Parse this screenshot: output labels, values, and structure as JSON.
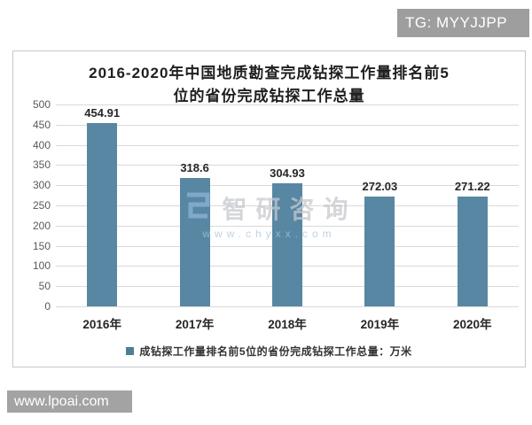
{
  "badges": {
    "telegram": {
      "label": "TG: MYYJJPP",
      "bg": "#9e9e9e"
    },
    "website": {
      "label": "www.lpoai.com",
      "bg": "#a3a3a3"
    }
  },
  "watermark": {
    "logo_icon": "zhiyan-logo-icon",
    "brand": "智研咨询",
    "url": "www.chyxx.com",
    "brand_color": "#c6c9ce",
    "url_color": "#a9c4de",
    "logo_color": "#8fb3d6"
  },
  "chart_data": {
    "type": "bar",
    "title": "2016-2020年中国地质勘查完成钻探工作量排名前5位的省份完成钻探工作总量",
    "title_lines": [
      "2016-2020年中国地质勘查完成钻探工作量排名前5",
      "位的省份完成钻探工作总量"
    ],
    "categories": [
      "2016年",
      "2017年",
      "2018年",
      "2019年",
      "2020年"
    ],
    "values": [
      454.91,
      318.6,
      304.93,
      272.03,
      271.22
    ],
    "value_labels": [
      "454.91",
      "318.6",
      "304.93",
      "272.03",
      "271.22"
    ],
    "legend_entries": [
      "成钻探工作量排名前5位的省份完成钻探工作总量：万米"
    ],
    "legend_position": "bottom",
    "ylim": [
      0,
      500
    ],
    "yticks": [
      0,
      50,
      100,
      150,
      200,
      250,
      300,
      350,
      400,
      450,
      500
    ],
    "grid": true,
    "bar_color": "#5887A3",
    "legend_marker_color": "#4E7E95",
    "gridline_color": "#d9d9d9",
    "axis_label_color": "#595959",
    "value_label_color": "#262626"
  }
}
